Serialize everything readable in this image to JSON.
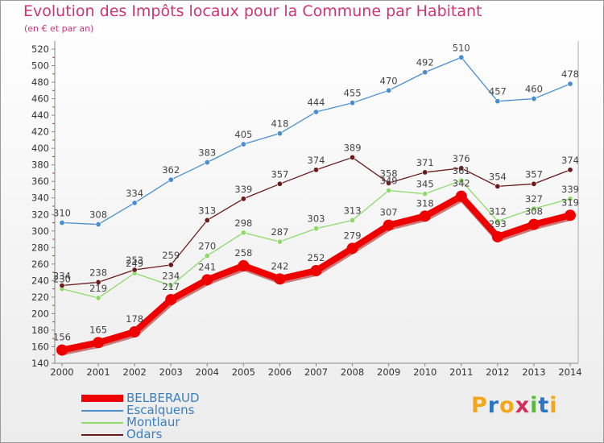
{
  "header": {
    "title": "Evolution des Impôts locaux pour la Commune par Habitant",
    "subtitle": "(en € et par an)"
  },
  "logo": {
    "text": "Proxiti",
    "letters": [
      {
        "ch": "P",
        "color": "#f2a71b"
      },
      {
        "ch": "r",
        "color": "#2a74c2"
      },
      {
        "ch": "o",
        "color": "#f2a71b"
      },
      {
        "ch": "x",
        "color": "#d1305e"
      },
      {
        "ch": "i",
        "color": "#5bb83b"
      },
      {
        "ch": "t",
        "color": "#2a74c2"
      },
      {
        "ch": "i",
        "color": "#f2a71b"
      }
    ]
  },
  "chart_data": {
    "type": "line",
    "title": "Evolution des Impôts locaux pour la Commune par Habitant",
    "subtitle": "(en € et par an)",
    "x": [
      "2000",
      "2001",
      "2002",
      "2003",
      "2004",
      "2005",
      "2006",
      "2007",
      "2008",
      "2009",
      "2010",
      "2011",
      "2012",
      "2013",
      "2014"
    ],
    "ylim": [
      140,
      520
    ],
    "yticks": [
      140,
      160,
      180,
      200,
      220,
      240,
      260,
      280,
      300,
      320,
      340,
      360,
      380,
      400,
      420,
      440,
      460,
      480,
      500,
      520
    ],
    "grid": false,
    "legend_position": "bottom-left",
    "series": [
      {
        "name": "BELBERAUD",
        "color": "#ee0000",
        "emphasis": true,
        "values": [
          156,
          165,
          178,
          217,
          241,
          258,
          242,
          252,
          279,
          307,
          318,
          342,
          293,
          308,
          319
        ]
      },
      {
        "name": "Escalquens",
        "color": "#4a8ed0",
        "emphasis": false,
        "values": [
          310,
          308,
          334,
          362,
          383,
          405,
          418,
          444,
          455,
          470,
          492,
          510,
          457,
          460,
          478
        ]
      },
      {
        "name": "Montlaur",
        "color": "#8ed96a",
        "emphasis": false,
        "values": [
          230,
          219,
          249,
          234,
          270,
          298,
          287,
          303,
          313,
          349,
          345,
          361,
          312,
          327,
          339
        ]
      },
      {
        "name": "Odars",
        "color": "#6b1a1a",
        "emphasis": false,
        "values": [
          234,
          238,
          253,
          259,
          313,
          339,
          357,
          374,
          389,
          358,
          371,
          376,
          354,
          357,
          374
        ]
      }
    ]
  }
}
